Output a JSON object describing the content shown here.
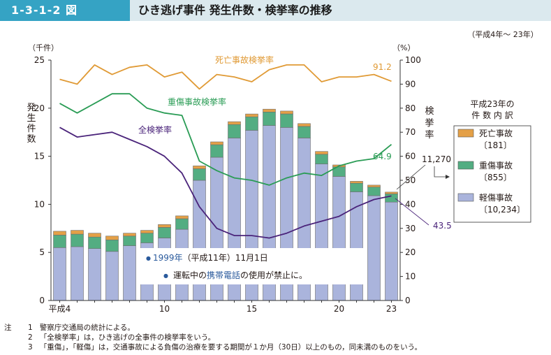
{
  "header": {
    "figure_number": "1-3-1-2 図",
    "title": "ひき逃げ事件 発生件数・検挙率の推移"
  },
  "chart_data": {
    "type": "bar",
    "period_note": "（平成4年～ 23年）",
    "x": [
      4,
      5,
      6,
      7,
      8,
      9,
      10,
      11,
      12,
      13,
      14,
      15,
      16,
      17,
      18,
      19,
      20,
      21,
      22,
      23
    ],
    "x_tick_labels": [
      {
        "x": 4,
        "label": "平成4"
      },
      {
        "x": 10,
        "label": "10"
      },
      {
        "x": 15,
        "label": "15"
      },
      {
        "x": 20,
        "label": "20"
      },
      {
        "x": 23,
        "label": "23"
      }
    ],
    "left_axis": {
      "unit": "（千件）",
      "label": "発生件数",
      "ylim": [
        0,
        25
      ],
      "ticks": [
        0,
        5,
        10,
        15,
        20,
        25
      ]
    },
    "right_axis": {
      "unit": "（%）",
      "label": "検挙率",
      "ylim": [
        0,
        100
      ],
      "ticks": [
        0,
        10,
        20,
        30,
        40,
        50,
        60,
        70,
        80,
        90,
        100
      ]
    },
    "bar_series": [
      {
        "name": "軽傷事故",
        "color": "#aab4dc",
        "values": [
          5.5,
          5.6,
          5.4,
          5.1,
          5.7,
          6.0,
          6.5,
          7.4,
          12.5,
          14.9,
          16.9,
          17.7,
          18.2,
          18.0,
          16.9,
          14.2,
          12.9,
          11.3,
          10.9,
          10.234
        ]
      },
      {
        "name": "重傷事故",
        "color": "#53ad82",
        "values": [
          1.3,
          1.3,
          1.2,
          1.2,
          1.0,
          1.0,
          1.1,
          1.1,
          1.2,
          1.3,
          1.4,
          1.4,
          1.4,
          1.4,
          1.2,
          1.0,
          1.0,
          0.9,
          0.9,
          0.855
        ]
      },
      {
        "name": "死亡事故",
        "color": "#e4a047",
        "values": [
          0.4,
          0.4,
          0.4,
          0.4,
          0.3,
          0.3,
          0.3,
          0.3,
          0.3,
          0.3,
          0.3,
          0.3,
          0.3,
          0.3,
          0.3,
          0.3,
          0.2,
          0.2,
          0.2,
          0.181
        ]
      }
    ],
    "line_series": [
      {
        "name": "死亡事故検挙率",
        "color": "#e09a35",
        "values": [
          92,
          90,
          98,
          94,
          97,
          98,
          93,
          95,
          88,
          94,
          93,
          91,
          96,
          98,
          98,
          91,
          93,
          93,
          94,
          91.2
        ]
      },
      {
        "name": "重傷事故検挙率",
        "color": "#2a9c55",
        "values": [
          82,
          78,
          82,
          86,
          86,
          80,
          78,
          77,
          58,
          54,
          51,
          50,
          48,
          51,
          53,
          52,
          56,
          58,
          59,
          64.9
        ]
      },
      {
        "name": "全検挙率",
        "color": "#4a237a",
        "values": [
          72,
          68,
          69,
          70,
          67,
          64,
          60,
          53,
          39,
          30,
          27,
          27,
          26,
          28,
          31,
          33,
          35,
          39,
          42,
          43.5
        ]
      }
    ],
    "data_labels": {
      "death_rate_last": "91.2",
      "serious_rate_last": "64.9",
      "total_rate_last": "43.5",
      "total_count_last": "11,270"
    },
    "legend": {
      "title_line1": "平成23年の",
      "title_line2": "件 数 内 訳",
      "items": [
        {
          "name": "死亡事故",
          "value": "〔181〕",
          "color": "#e4a047"
        },
        {
          "name": "重傷事故",
          "value": "〔855〕",
          "color": "#53ad82"
        },
        {
          "name": "軽傷事故",
          "value": "〔10,234〕",
          "color": "#aab4dc"
        }
      ]
    },
    "annotation": {
      "bullet": "●",
      "line1_year": "1999年",
      "line1_rest": "（平成11年）11月1日",
      "line2_a": "運転中の",
      "line2_b": "携帯電話",
      "line2_c": "の使用が禁止に。"
    },
    "grid": false
  },
  "notes": [
    {
      "prefix": "注",
      "num": "1",
      "text": "警察庁交通局の統計による。"
    },
    {
      "prefix": "",
      "num": "2",
      "text": "「全検挙率」は，ひき逃げの全事件の検挙率をいう。"
    },
    {
      "prefix": "",
      "num": "3",
      "text": "「重傷」，「軽傷」は，交通事故による負傷の治療を要する期間が１か月（30日）以上のもの，同未満のものをいう。"
    }
  ]
}
